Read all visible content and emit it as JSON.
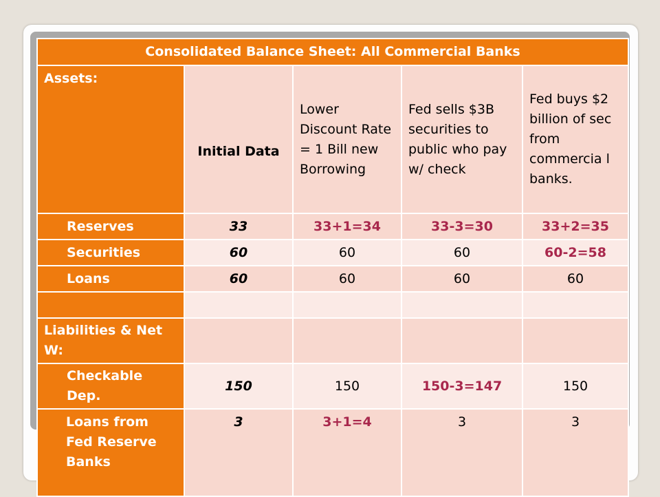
{
  "title": "Consolidated Balance Sheet: All Commercial Banks",
  "header": {
    "assets_label": "Assets:",
    "columns": [
      "Initial Data",
      "Lower Discount Rate = 1 Bill new Borrowing",
      "Fed sells $3B securities to public who pay w/ check",
      "Fed buys $2 billion of sec from commercia l banks."
    ]
  },
  "rows": [
    {
      "label": "Reserves",
      "values": [
        "33",
        "33+1=34",
        "33-3=30",
        "33+2=35"
      ]
    },
    {
      "label": "Securities",
      "values": [
        "60",
        "60",
        "60",
        "60-2=58"
      ]
    },
    {
      "label": "Loans",
      "values": [
        "60",
        "60",
        "60",
        "60"
      ]
    },
    {
      "label": "",
      "values": [
        "",
        "",
        "",
        ""
      ]
    },
    {
      "label": "Liabilities & Net W:",
      "values": [
        "",
        "",
        "",
        ""
      ]
    },
    {
      "label": "Checkable Dep.",
      "values": [
        "150",
        "150",
        "150-3=147",
        "150"
      ]
    },
    {
      "label": "Loans from Fed Reserve Banks",
      "values": [
        "3",
        "3+1=4",
        "3",
        "3"
      ]
    }
  ],
  "colors": {
    "orange": "#ef7b0e",
    "pink": "#f8d8cf",
    "light_pink": "#fbeae6",
    "change_text": "#a8274c"
  }
}
